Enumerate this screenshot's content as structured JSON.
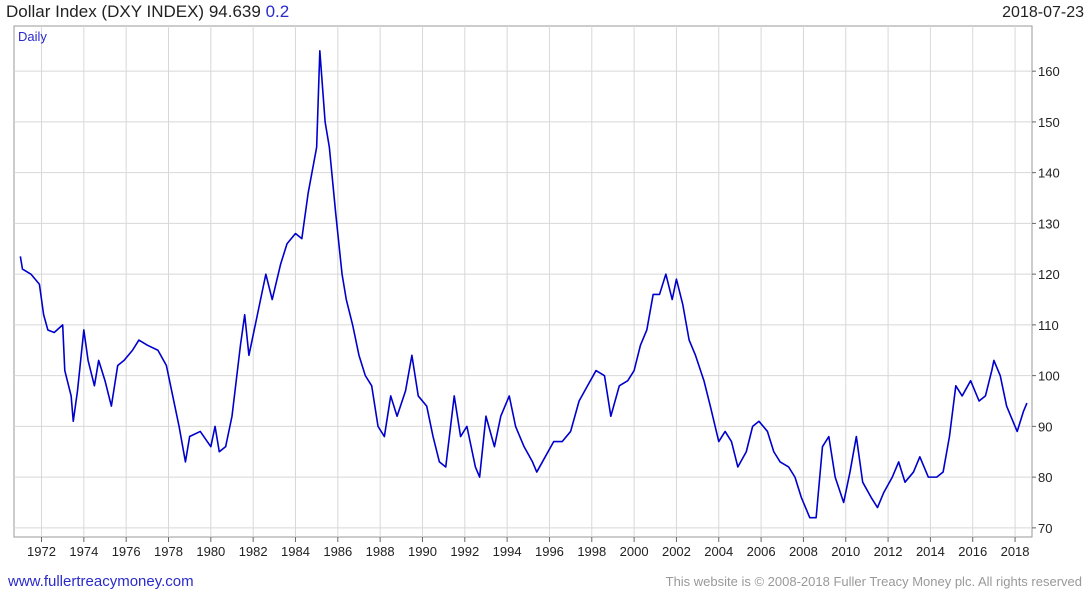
{
  "chart_data": {
    "type": "line",
    "title": "Dollar Index (DXY INDEX)",
    "last": 94.639,
    "change": 0.2,
    "date": "2018-07-23",
    "frequency": "Daily",
    "footer_left": "www.fullertreacymoney.com",
    "footer_right": "This website is © 2008-2018 Fuller Treacy Money plc. All rights reserved",
    "grid": true,
    "xlim": [
      1970.7,
      2018.8
    ],
    "xticks": [
      1972,
      1974,
      1976,
      1978,
      1980,
      1982,
      1984,
      1986,
      1988,
      1990,
      1992,
      1994,
      1996,
      1998,
      2000,
      2002,
      2004,
      2006,
      2008,
      2010,
      2012,
      2014,
      2016,
      2018
    ],
    "ylim": [
      68.2,
      168.9
    ],
    "yticks": [
      70,
      80,
      90,
      100,
      110,
      120,
      130,
      140,
      150,
      160
    ],
    "series": [
      {
        "color": "#0000cc",
        "x": [
          1971.0,
          1971.1,
          1971.5,
          1971.9,
          1972.1,
          1972.3,
          1972.6,
          1973.0,
          1973.1,
          1973.4,
          1973.5,
          1973.7,
          1974.0,
          1974.2,
          1974.5,
          1974.7,
          1975.0,
          1975.3,
          1975.6,
          1975.9,
          1976.3,
          1976.6,
          1977.0,
          1977.5,
          1977.9,
          1978.2,
          1978.5,
          1978.8,
          1979.0,
          1979.5,
          1980.0,
          1980.2,
          1980.4,
          1980.7,
          1981.0,
          1981.4,
          1981.6,
          1981.8,
          1982.2,
          1982.6,
          1982.9,
          1983.3,
          1983.6,
          1984.0,
          1984.3,
          1984.6,
          1985.0,
          1985.15,
          1985.4,
          1985.6,
          1985.9,
          1986.2,
          1986.4,
          1986.7,
          1987.0,
          1987.3,
          1987.6,
          1987.9,
          1988.2,
          1988.5,
          1988.8,
          1989.2,
          1989.5,
          1989.8,
          1990.2,
          1990.5,
          1990.8,
          1991.1,
          1991.5,
          1991.8,
          1992.1,
          1992.5,
          1992.7,
          1993.0,
          1993.4,
          1993.7,
          1994.1,
          1994.4,
          1994.8,
          1995.2,
          1995.4,
          1995.8,
          1996.2,
          1996.6,
          1997.0,
          1997.4,
          1997.8,
          1998.2,
          1998.6,
          1998.9,
          1999.3,
          1999.7,
          2000.0,
          2000.3,
          2000.6,
          2000.9,
          2001.2,
          2001.5,
          2001.8,
          2002.0,
          2002.3,
          2002.6,
          2002.9,
          2003.3,
          2003.6,
          2004.0,
          2004.3,
          2004.6,
          2004.9,
          2005.3,
          2005.6,
          2005.9,
          2006.3,
          2006.6,
          2006.9,
          2007.3,
          2007.6,
          2007.9,
          2008.3,
          2008.6,
          2008.9,
          2009.2,
          2009.5,
          2009.9,
          2010.2,
          2010.5,
          2010.8,
          2011.2,
          2011.5,
          2011.8,
          2012.2,
          2012.5,
          2012.8,
          2013.2,
          2013.5,
          2013.9,
          2014.3,
          2014.6,
          2014.9,
          2015.2,
          2015.5,
          2015.9,
          2016.3,
          2016.6,
          2016.9,
          2017.0,
          2017.3,
          2017.6,
          2018.0,
          2018.1,
          2018.4,
          2018.56
        ],
        "values": [
          123.5,
          121,
          120,
          118,
          112,
          109,
          108.5,
          110,
          101,
          96,
          91,
          97,
          109,
          103,
          98,
          103,
          99,
          94,
          102,
          103,
          105,
          107,
          106,
          105,
          102,
          96,
          90,
          83,
          88,
          89,
          86,
          90,
          85,
          86,
          92,
          106,
          112,
          104,
          112,
          120,
          115,
          122,
          126,
          128,
          127,
          136,
          145,
          164,
          150,
          145,
          132,
          120,
          115,
          110,
          104,
          100,
          98,
          90,
          88,
          96,
          92,
          97,
          104,
          96,
          94,
          88,
          83,
          82,
          96,
          88,
          90,
          82,
          80,
          92,
          86,
          92,
          96,
          90,
          86,
          83,
          81,
          84,
          87,
          87,
          89,
          95,
          98,
          101,
          100,
          92,
          98,
          99,
          101,
          106,
          109,
          116,
          116,
          120,
          115,
          119,
          114,
          107,
          104,
          99,
          94,
          87,
          89,
          87,
          82,
          85,
          90,
          91,
          89,
          85,
          83,
          82,
          80,
          76,
          72,
          72,
          86,
          88,
          80,
          75,
          81,
          88,
          79,
          76,
          74,
          77,
          80,
          83,
          79,
          81,
          84,
          80,
          80,
          81,
          88,
          98,
          96,
          99,
          95,
          96,
          101,
          103,
          100,
          94,
          90,
          89,
          93,
          94.6
        ]
      }
    ]
  }
}
